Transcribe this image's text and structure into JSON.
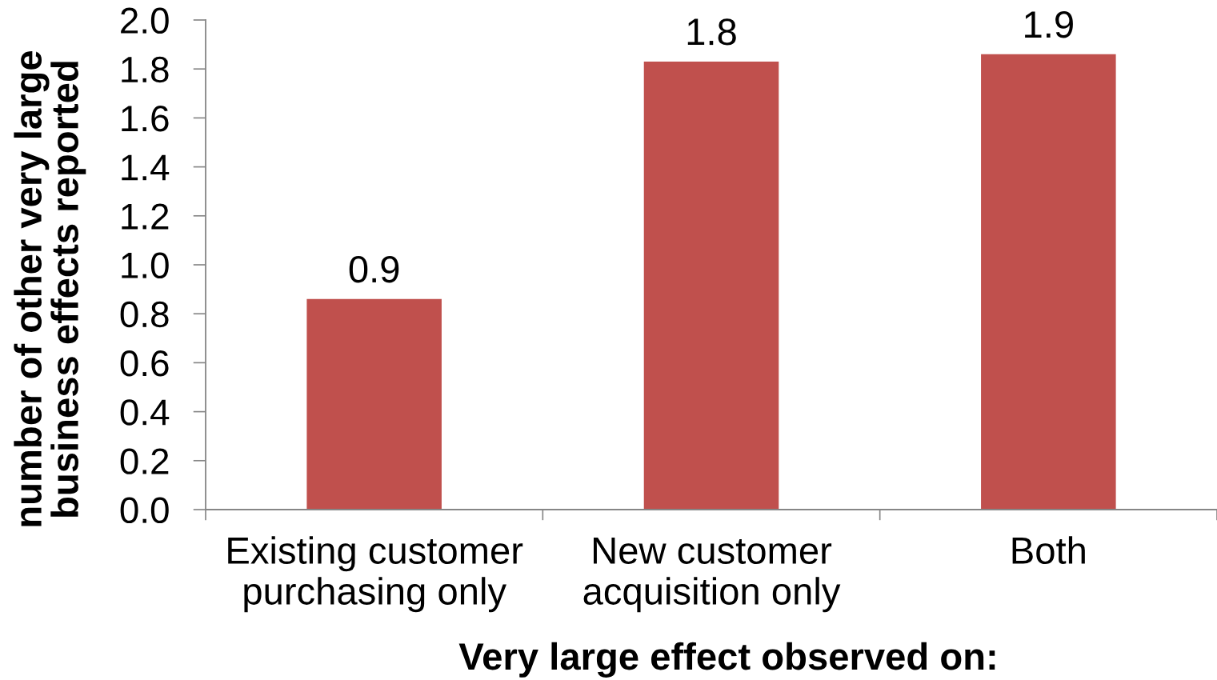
{
  "chart_data": {
    "type": "bar",
    "categories": [
      "Existing customer\npurchasing only",
      "New customer\nacquisition only",
      "Both"
    ],
    "values": [
      0.86,
      1.83,
      1.86
    ],
    "value_labels": [
      "0.9",
      "1.8",
      "1.9"
    ],
    "color": "#c0504d",
    "xlabel": "Very large effect observed on:",
    "ylabel": "number of other very large\nbusiness effects reported",
    "ylim": [
      0,
      2.0
    ],
    "yticks": [
      {
        "value": 0,
        "label": "0.0"
      },
      0.2,
      0.4,
      0.6,
      0.8,
      {
        "value": 1,
        "label": "1.0"
      },
      1.2,
      1.4,
      1.6,
      1.8,
      {
        "value": 2,
        "label": "2.0"
      }
    ]
  }
}
